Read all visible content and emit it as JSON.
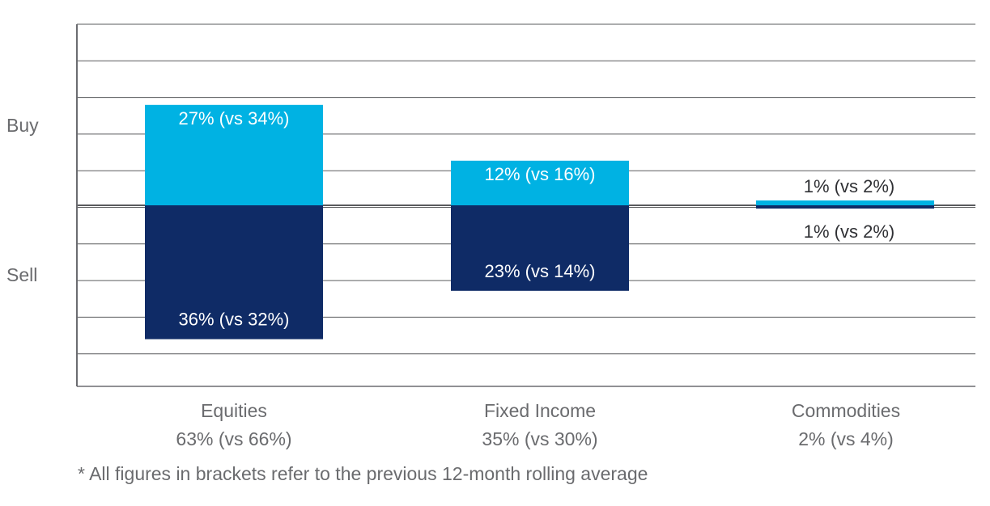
{
  "chart_data": {
    "type": "bar",
    "subtype": "diverging-stacked",
    "y_axis_labels": [
      "Buy",
      "Sell"
    ],
    "categories": [
      "Equities",
      "Fixed Income",
      "Commodities"
    ],
    "category_totals": [
      "63% (vs 66%)",
      "35% (vs 30%)",
      "2% (vs 4%)"
    ],
    "series": [
      {
        "name": "Buy",
        "values": [
          27,
          12,
          1
        ],
        "previous_values": [
          34,
          16,
          2
        ],
        "labels": [
          "27% (vs 34%)",
          "12% (vs 16%)",
          "1% (vs 2%)"
        ],
        "color": "#00b2e3"
      },
      {
        "name": "Sell",
        "values": [
          36,
          23,
          1
        ],
        "previous_values": [
          32,
          14,
          2
        ],
        "labels": [
          "36% (vs 32%)",
          "23% (vs 14%)",
          "1% (vs 2%)"
        ],
        "color": "#0f2b66"
      }
    ],
    "ylim": [
      -50,
      50
    ],
    "grid": true
  },
  "footnote": "* All figures in brackets refer to the previous 12-month rolling average",
  "colors": {
    "buy": "#00b2e3",
    "sell": "#0f2b66",
    "grid": "#5a5b5e",
    "axis": "#6b6c70",
    "text": "#6a6b6e",
    "bar_text": "#ffffff",
    "outside_label_text": "#2f3034"
  }
}
